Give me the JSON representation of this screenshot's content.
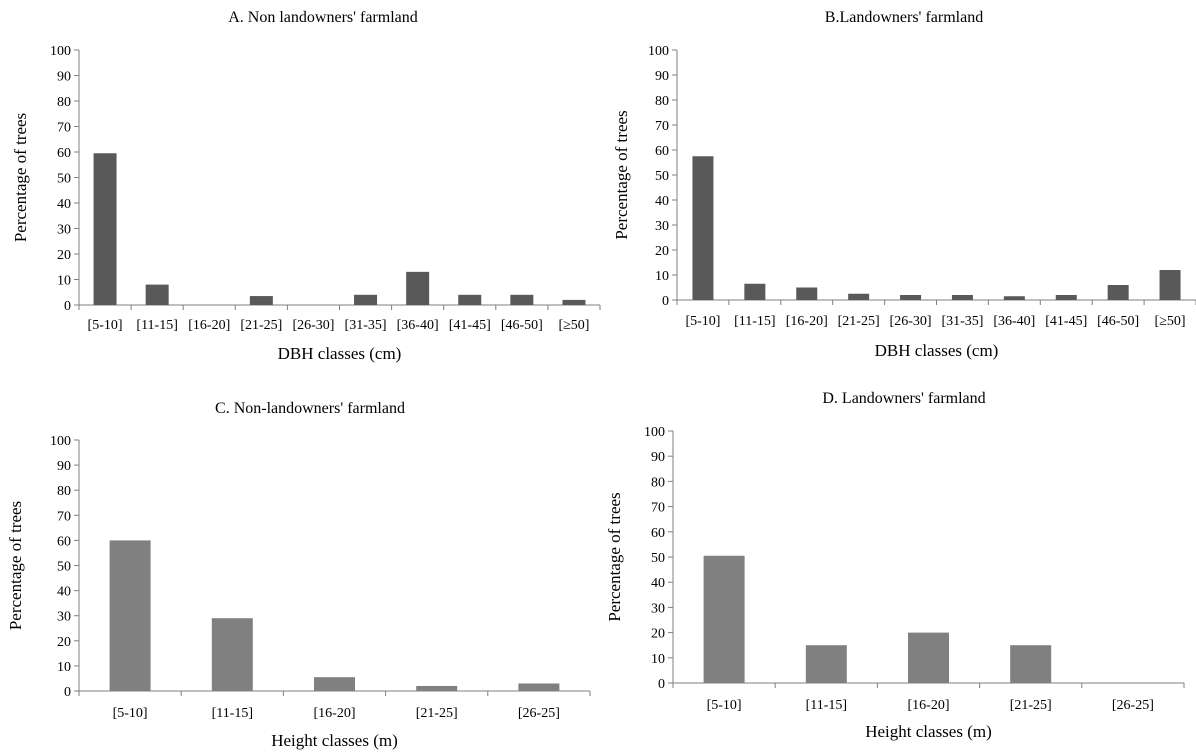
{
  "chart_data": [
    {
      "type": "bar",
      "title": "A. Non landowners' farmland",
      "xlabel": "DBH classes (cm)",
      "ylabel": "Percentage of trees",
      "ylim": [
        0,
        100
      ],
      "yticks": [
        0,
        10,
        20,
        30,
        40,
        50,
        60,
        70,
        80,
        90,
        100
      ],
      "categories": [
        "[5-10]",
        "[11-15]",
        "[16-20]",
        "[21-25]",
        "[26-30]",
        "[31-35]",
        "[36-40]",
        "[41-45]",
        "[46-50]",
        "[≥50]"
      ],
      "values": [
        59.5,
        8.0,
        0,
        3.5,
        0,
        4.0,
        13.0,
        4.0,
        4.0,
        2.0
      ],
      "bar_color": "#595959",
      "grid": false,
      "legend": "none"
    },
    {
      "type": "bar",
      "title": "B.Landowners' farmland",
      "xlabel": "DBH classes (cm)",
      "ylabel": "Percentage of trees",
      "ylim": [
        0,
        100
      ],
      "yticks": [
        0,
        10,
        20,
        30,
        40,
        50,
        60,
        70,
        80,
        90,
        100
      ],
      "categories": [
        "[5-10]",
        "[11-15]",
        "[16-20]",
        "[21-25]",
        "[26-30]",
        "[31-35]",
        "[36-40]",
        "[41-45]",
        "[46-50]",
        "[≥50]"
      ],
      "values": [
        57.5,
        6.5,
        5.0,
        2.5,
        2.0,
        2.0,
        1.5,
        2.0,
        6.0,
        12.0
      ],
      "bar_color": "#595959",
      "grid": false,
      "legend": "none"
    },
    {
      "type": "bar",
      "title": "C. Non-landowners' farmland",
      "xlabel": "Height classes (m)",
      "ylabel": "Percentage of trees",
      "ylim": [
        0,
        100
      ],
      "yticks": [
        0,
        10,
        20,
        30,
        40,
        50,
        60,
        70,
        80,
        90,
        100
      ],
      "categories": [
        "[5-10]",
        "[11-15]",
        "[16-20]",
        "[21-25]",
        "[26-25]"
      ],
      "values": [
        60.0,
        29.0,
        5.5,
        2.0,
        3.0
      ],
      "bar_color": "#808080",
      "grid": false,
      "legend": "none"
    },
    {
      "type": "bar",
      "title": "D. Landowners' farmland",
      "xlabel": "Height classes (m)",
      "ylabel": "Percentage of trees",
      "ylim": [
        0,
        100
      ],
      "yticks": [
        0,
        10,
        20,
        30,
        40,
        50,
        60,
        70,
        80,
        90,
        100
      ],
      "categories": [
        "[5-10]",
        "[11-15]",
        "[16-20]",
        "[21-25]",
        "[26-25]"
      ],
      "values": [
        50.5,
        15.0,
        20.0,
        15.0,
        0
      ],
      "bar_color": "#808080",
      "grid": false,
      "legend": "none"
    }
  ]
}
